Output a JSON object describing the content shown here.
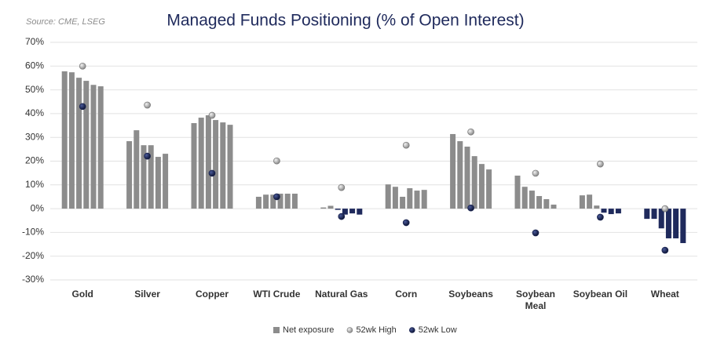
{
  "chart_data": {
    "type": "grouped-bar-dot",
    "title": "Managed Funds Positioning (% of Open Interest)",
    "source": "Source: CME, LSEG",
    "categories": [
      "Gold",
      "Silver",
      "Copper",
      "WTI Crude",
      "Natural Gas",
      "Corn",
      "Soybeans",
      "Soybean Meal",
      "Soybean Oil",
      "Wheat"
    ],
    "series": [
      {
        "name": "Net exposure",
        "color": "#8c8c8c",
        "negative_color": "#1f2a5c",
        "values": [
          [
            57.8,
            57.4,
            55.1,
            53.8,
            52.1,
            51.5
          ],
          [
            28.4,
            33,
            26.7,
            26.7,
            21.8,
            23.1
          ],
          [
            36,
            38.3,
            39.3,
            37.3,
            36.3,
            35.3
          ],
          [
            5,
            5.9,
            5.9,
            6.3,
            6.3,
            6.3
          ],
          [
            0.5,
            1.2,
            -0.5,
            -2.5,
            -2,
            -2.5
          ],
          [
            10.2,
            9.2,
            5,
            8.6,
            7.6,
            7.9
          ],
          [
            31.4,
            28.4,
            26.1,
            22.1,
            18.8,
            16.5
          ],
          [
            13.9,
            9.2,
            7.6,
            5.3,
            4,
            1.7
          ],
          [
            5.6,
            5.9,
            1.3,
            -1.7,
            -2.3,
            -2
          ],
          [
            -4.3,
            -4.3,
            -8.3,
            -12.5,
            -12.5,
            -14.5
          ]
        ]
      },
      {
        "name": "52wk High",
        "color": "#b4b4b4",
        "values": [
          60,
          43.6,
          39.3,
          20.1,
          8.9,
          26.7,
          32.3,
          14.9,
          18.8,
          0
        ]
      },
      {
        "name": "52wk Low",
        "color": "#1b2550",
        "values": [
          43,
          22.1,
          14.9,
          5,
          -3.3,
          -5.9,
          0.3,
          -10.2,
          -3.6,
          -17.5
        ]
      }
    ],
    "ylim": [
      -30,
      70
    ],
    "yticks": [
      {
        "value": -30,
        "label": "-30%"
      },
      {
        "value": -20,
        "label": "-20%"
      },
      {
        "value": -10,
        "label": "-10%"
      },
      {
        "value": 0,
        "label": "0%"
      },
      {
        "value": 10,
        "label": "10%"
      },
      {
        "value": 20,
        "label": "20%"
      },
      {
        "value": 30,
        "label": "30%"
      },
      {
        "value": 40,
        "label": "40%"
      },
      {
        "value": 50,
        "label": "50%"
      },
      {
        "value": 60,
        "label": "60%"
      },
      {
        "value": 70,
        "label": "70%"
      }
    ],
    "grid": true
  }
}
